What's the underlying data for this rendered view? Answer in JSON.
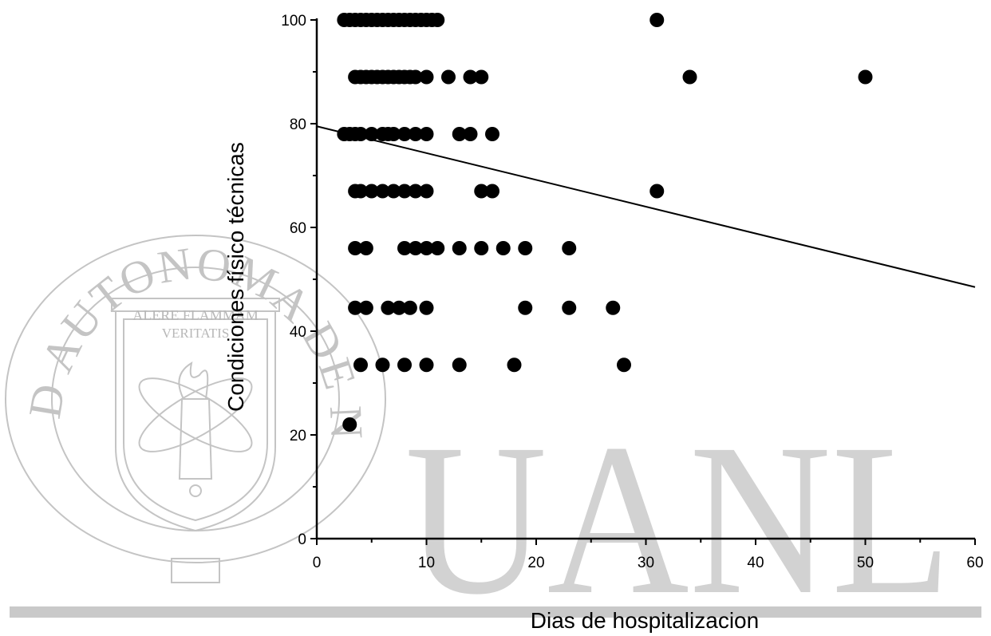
{
  "watermark": {
    "seal_text": "UNIVERSIDAD AUTONOMA DE NUEVO LEON",
    "motto": [
      "ALERE FLAMMAM",
      "VERITATIS"
    ],
    "big_letters": "UANL",
    "colors": {
      "seal": "#c4c4c4",
      "letters": "#d2d2d2",
      "rule": "#c9c9c9"
    },
    "icon": "university-seal-torch-icon"
  },
  "chart_data": {
    "type": "scatter",
    "xlabel": "Dias de hospitalizacion",
    "ylabel": "Condiciones físico técnicas",
    "xlim": [
      0,
      60
    ],
    "ylim": [
      0,
      100
    ],
    "xticks": [
      0,
      10,
      20,
      30,
      40,
      50,
      60
    ],
    "xtick_labels": [
      "0",
      "10",
      "20",
      "30",
      "40",
      "50",
      "60"
    ],
    "yticks": [
      0,
      20,
      40,
      60,
      80,
      100
    ],
    "ytick_labels": [
      "0",
      "20",
      "40",
      "60",
      "80",
      "100"
    ],
    "grid": false,
    "legend": "none",
    "colors": {
      "points": "#000000",
      "line": "#000000",
      "axes": "#000000"
    },
    "points": [
      [
        2.5,
        100
      ],
      [
        3,
        100
      ],
      [
        3.5,
        100
      ],
      [
        4,
        100
      ],
      [
        4.5,
        100
      ],
      [
        5,
        100
      ],
      [
        5.5,
        100
      ],
      [
        6,
        100
      ],
      [
        6.5,
        100
      ],
      [
        7,
        100
      ],
      [
        7.5,
        100
      ],
      [
        8,
        100
      ],
      [
        8.5,
        100
      ],
      [
        9,
        100
      ],
      [
        9.5,
        100
      ],
      [
        10,
        100
      ],
      [
        10.5,
        100
      ],
      [
        11,
        100
      ],
      [
        31,
        100
      ],
      [
        3.5,
        89
      ],
      [
        4,
        89
      ],
      [
        4.5,
        89
      ],
      [
        5,
        89
      ],
      [
        5.5,
        89
      ],
      [
        6,
        89
      ],
      [
        6.5,
        89
      ],
      [
        7,
        89
      ],
      [
        7.5,
        89
      ],
      [
        8,
        89
      ],
      [
        8.5,
        89
      ],
      [
        9,
        89
      ],
      [
        10,
        89
      ],
      [
        12,
        89
      ],
      [
        14,
        89
      ],
      [
        15,
        89
      ],
      [
        34,
        89
      ],
      [
        50,
        89
      ],
      [
        2.5,
        78
      ],
      [
        3,
        78
      ],
      [
        3.5,
        78
      ],
      [
        4,
        78
      ],
      [
        5,
        78
      ],
      [
        6,
        78
      ],
      [
        6.5,
        78
      ],
      [
        7,
        78
      ],
      [
        8,
        78
      ],
      [
        9,
        78
      ],
      [
        10,
        78
      ],
      [
        13,
        78
      ],
      [
        14,
        78
      ],
      [
        16,
        78
      ],
      [
        3.5,
        67
      ],
      [
        4,
        67
      ],
      [
        5,
        67
      ],
      [
        6,
        67
      ],
      [
        7,
        67
      ],
      [
        8,
        67
      ],
      [
        9,
        67
      ],
      [
        10,
        67
      ],
      [
        15,
        67
      ],
      [
        16,
        67
      ],
      [
        31,
        67
      ],
      [
        3.5,
        56
      ],
      [
        4.5,
        56
      ],
      [
        8,
        56
      ],
      [
        9,
        56
      ],
      [
        10,
        56
      ],
      [
        11,
        56
      ],
      [
        13,
        56
      ],
      [
        15,
        56
      ],
      [
        17,
        56
      ],
      [
        19,
        56
      ],
      [
        23,
        56
      ],
      [
        3.5,
        44.5
      ],
      [
        4.5,
        44.5
      ],
      [
        6.5,
        44.5
      ],
      [
        7.5,
        44.5
      ],
      [
        8.5,
        44.5
      ],
      [
        10,
        44.5
      ],
      [
        19,
        44.5
      ],
      [
        23,
        44.5
      ],
      [
        27,
        44.5
      ],
      [
        4,
        33.5
      ],
      [
        6,
        33.5
      ],
      [
        8,
        33.5
      ],
      [
        10,
        33.5
      ],
      [
        13,
        33.5
      ],
      [
        18,
        33.5
      ],
      [
        28,
        33.5
      ],
      [
        3,
        22
      ]
    ],
    "fit_line": {
      "x": [
        0,
        60
      ],
      "y": [
        79.5,
        48.5
      ]
    }
  }
}
